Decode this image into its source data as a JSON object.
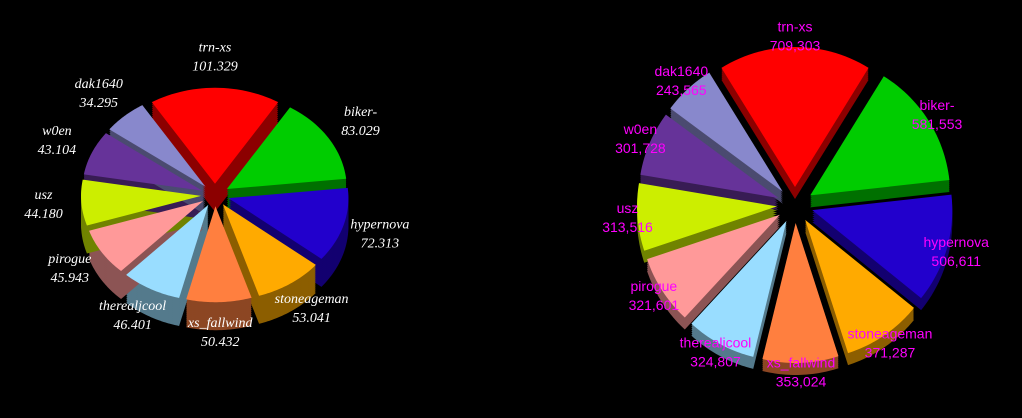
{
  "chart_data": [
    {
      "type": "pie",
      "categories": [
        "trn-xs",
        "biker-",
        "hypernova",
        "stoneageman",
        "xs_fallwind",
        "therealjcool",
        "pirogue",
        "usz",
        "w0en",
        "dak1640"
      ],
      "values": [
        101329,
        83029,
        72313,
        53041,
        50432,
        46401,
        45943,
        44180,
        43104,
        34295
      ],
      "value_labels": [
        "101.329",
        "83.029",
        "72.313",
        "53.041",
        "50.432",
        "46.401",
        "45.943",
        "44.180",
        "43.104",
        "34.295"
      ],
      "colors": [
        "#ff0000",
        "#00cc00",
        "#2200cc",
        "#ffaa00",
        "#ff7f3f",
        "#99ddff",
        "#ff9999",
        "#ccee00",
        "#663399",
        "#8888cc"
      ],
      "label_color": "#ffffff"
    },
    {
      "type": "pie",
      "categories": [
        "trn-xs",
        "biker-",
        "hypernova",
        "stoneageman",
        "xs_fallwind",
        "therealjcool",
        "pirogue",
        "usz",
        "w0en",
        "dak1640"
      ],
      "values": [
        709303,
        581553,
        506611,
        371287,
        353024,
        324807,
        321601,
        313516,
        301728,
        243565
      ],
      "value_labels": [
        "709,303",
        "581,553",
        "506,611",
        "371,287",
        "353,024",
        "324,807",
        "321,601",
        "313,516",
        "301,728",
        "243,565"
      ],
      "colors": [
        "#ff0000",
        "#00cc00",
        "#2200cc",
        "#ffaa00",
        "#ff7f3f",
        "#99ddff",
        "#ff9999",
        "#ccee00",
        "#663399",
        "#8888cc"
      ],
      "label_color": "#ff00ff"
    }
  ]
}
